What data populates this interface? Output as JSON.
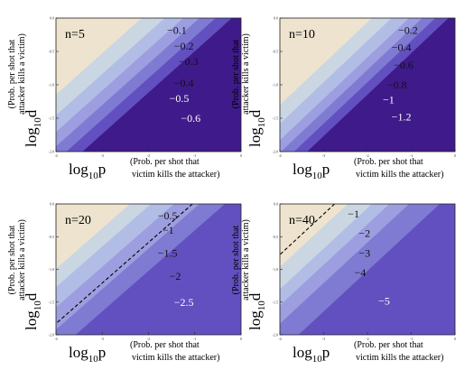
{
  "chart_data": [
    {
      "type": "contour",
      "title": "n=5",
      "xlabel": "log₁₀p",
      "xlabel_note": [
        "(Prob. per shot that",
        "victim kills the attacker)"
      ],
      "ylabel": "log₁₀d",
      "ylabel_note": [
        "(Prob. per shot that",
        "attacker kills a victim)"
      ],
      "xlim": [
        -4,
        0
      ],
      "ylim": [
        -2,
        0
      ],
      "xticks": [
        "-4",
        "-3",
        "-2",
        "-1",
        "0"
      ],
      "yticks": [
        "0.0",
        "-0.5",
        "-1.0",
        "-1.5",
        "-2.0"
      ],
      "levels": [
        "−0.1",
        "−0.2",
        "−0.3",
        "−0.4",
        "−0.5",
        "−0.6"
      ],
      "level_values": [
        -0.1,
        -0.2,
        -0.3,
        -0.4,
        -0.5,
        -0.6
      ],
      "slope": 0.62,
      "x_at_top": [
        -2.15,
        -1.65,
        -1.25,
        -0.9,
        -0.55,
        -0.2
      ],
      "dashed_x_at_top": null,
      "label_points": [
        [
          -1.6,
          -0.18
        ],
        [
          -1.45,
          -0.42
        ],
        [
          -1.35,
          -0.65
        ],
        [
          -1.45,
          -0.97
        ],
        [
          -1.55,
          -1.2
        ],
        [
          -1.3,
          -1.5
        ]
      ]
    },
    {
      "type": "contour",
      "title": "n=10",
      "xlabel": "log₁₀p",
      "xlabel_note": [
        "(Prob. per shot that",
        "victim kills the attacker)"
      ],
      "ylabel": "log₁₀d",
      "ylabel_note": [
        "(Prob. per shot that",
        "attacker kills a victim)"
      ],
      "xlim": [
        -4,
        0
      ],
      "ylim": [
        -2,
        0
      ],
      "xticks": [
        "-4",
        "-3",
        "-2",
        "-1",
        "0"
      ],
      "yticks": [
        "0.0",
        "-0.5",
        "-1.0",
        "-1.5",
        "-2.0"
      ],
      "levels": [
        "−0.2",
        "−0.4",
        "−0.6",
        "−0.8",
        "−1",
        "−1.2"
      ],
      "level_values": [
        -0.2,
        -0.4,
        -0.6,
        -0.8,
        -1.0,
        -1.2
      ],
      "slope": 0.62,
      "x_at_top": [
        -1.9,
        -1.45,
        -1.05,
        -0.75,
        -0.45,
        -0.15
      ],
      "dashed_x_at_top": null,
      "label_points": [
        [
          -1.3,
          -0.18
        ],
        [
          -1.45,
          -0.44
        ],
        [
          -1.4,
          -0.7
        ],
        [
          -1.55,
          -1.0
        ],
        [
          -1.65,
          -1.22
        ],
        [
          -1.45,
          -1.48
        ]
      ]
    },
    {
      "type": "contour",
      "title": "n=20",
      "xlabel": "log₁₀p",
      "xlabel_note": [
        "(Prob. per shot that",
        "victim kills the attacker)"
      ],
      "ylabel": "log₁₀d",
      "ylabel_note": [
        "(Prob. per shot that",
        "attacker kills a victim)"
      ],
      "xlim": [
        -4,
        0
      ],
      "ylim": [
        -2,
        0
      ],
      "xticks": [
        "-4",
        "-3",
        "-2",
        "-1",
        "0"
      ],
      "yticks": [
        "0.0",
        "-0.5",
        "-1.0",
        "-1.5",
        "-2.0"
      ],
      "levels": [
        "−0.5",
        "−1",
        "−1.5",
        "−2",
        "−2.5"
      ],
      "level_values": [
        -0.5,
        -1.0,
        -1.5,
        -2.0,
        -2.5
      ],
      "slope": 0.62,
      "x_at_top": [
        -2.4,
        -1.95,
        -1.45,
        -0.9,
        -0.35
      ],
      "dashed_x_at_top": -1.05,
      "label_points": [
        [
          -1.8,
          -0.18
        ],
        [
          -1.7,
          -0.4
        ],
        [
          -1.8,
          -0.75
        ],
        [
          -1.55,
          -1.1
        ],
        [
          -1.45,
          -1.5
        ]
      ]
    },
    {
      "type": "contour",
      "title": "n=40",
      "xlabel": "log₁₀p",
      "xlabel_note": [
        "(Prob. per shot that",
        "victim kills the attacker)"
      ],
      "ylabel": "log₁₀d",
      "ylabel_note": [
        "(Prob. per shot that",
        "attacker kills a victim)"
      ],
      "xlim": [
        -4,
        0
      ],
      "ylim": [
        -2,
        0
      ],
      "xticks": [
        "-4",
        "-3",
        "-2",
        "-1",
        "0"
      ],
      "yticks": [
        "0.0",
        "-0.5",
        "-1.0",
        "-1.5",
        "-2.0"
      ],
      "levels": [
        "−1",
        "−2",
        "−3",
        "−4",
        "−5"
      ],
      "level_values": [
        -1,
        -2,
        -3,
        -4,
        -5
      ],
      "slope": 0.62,
      "x_at_top": [
        -2.45,
        -1.9,
        -1.5,
        -1.05,
        -0.35
      ],
      "dashed_x_at_top": -2.75,
      "label_points": [
        [
          -2.45,
          -0.15
        ],
        [
          -2.2,
          -0.45
        ],
        [
          -2.2,
          -0.75
        ],
        [
          -2.3,
          -1.05
        ],
        [
          -1.75,
          -1.48
        ]
      ]
    }
  ],
  "colors": {
    "background_region": "#ede3cf",
    "bands": [
      "#cbd6e3",
      "#b2bde5",
      "#9d9ee0",
      "#7f7bd2",
      "#6250c0",
      "#3f1a8a"
    ],
    "label_dark": "#111111",
    "label_light": "#ffffff"
  }
}
